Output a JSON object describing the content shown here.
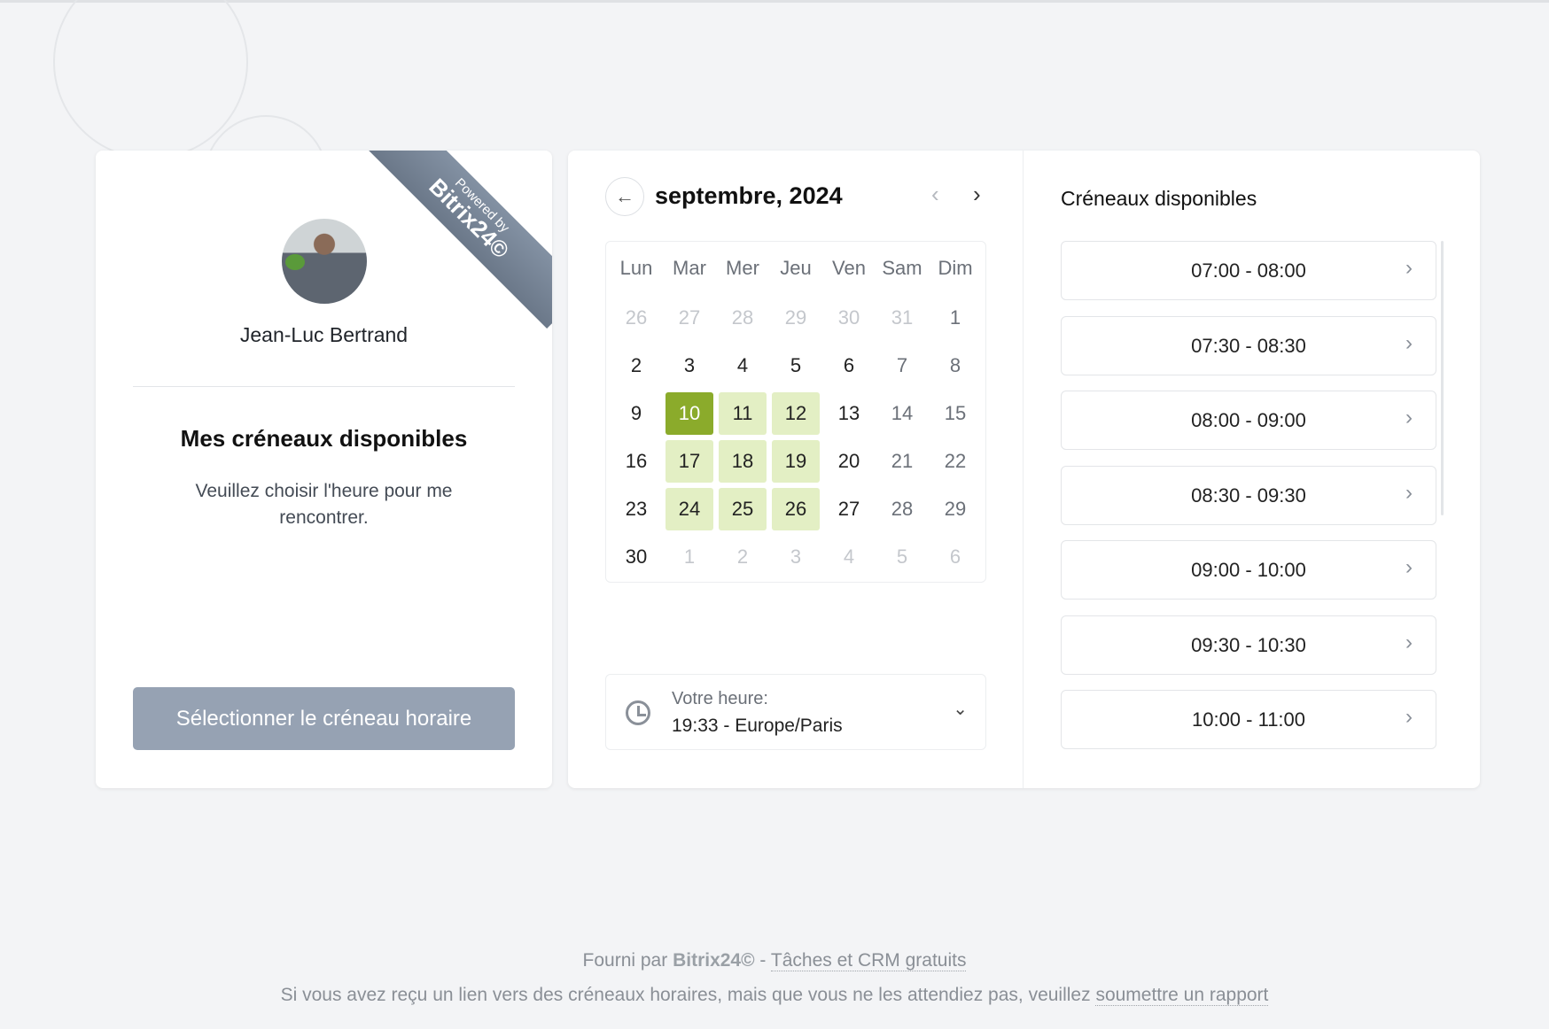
{
  "ribbon": {
    "powered": "Powered by",
    "brand": "Bitrix24©"
  },
  "profile": {
    "name": "Jean-Luc Bertrand",
    "heading": "Mes créneaux disponibles",
    "description": "Veuillez choisir l'heure pour me rencontrer.",
    "select_button": "Sélectionner le créneau horaire"
  },
  "calendar": {
    "title": "septembre, 2024",
    "weekdays": [
      "Lun",
      "Mar",
      "Mer",
      "Jeu",
      "Ven",
      "Sam",
      "Dim"
    ],
    "weeks": [
      [
        "26",
        "27",
        "28",
        "29",
        "30",
        "31",
        "1"
      ],
      [
        "2",
        "3",
        "4",
        "5",
        "6",
        "7",
        "8"
      ],
      [
        "9",
        "10",
        "11",
        "12",
        "13",
        "14",
        "15"
      ],
      [
        "16",
        "17",
        "18",
        "19",
        "20",
        "21",
        "22"
      ],
      [
        "23",
        "24",
        "25",
        "26",
        "27",
        "28",
        "29"
      ],
      [
        "30",
        "1",
        "2",
        "3",
        "4",
        "5",
        "6"
      ]
    ],
    "selected": "10",
    "available": [
      "11",
      "12",
      "17",
      "18",
      "19",
      "24",
      "25",
      "26"
    ],
    "accent": "#8bab2b",
    "available_color": "#e3efc4"
  },
  "timezone": {
    "label": "Votre heure:",
    "value": "19:33 - Europe/Paris"
  },
  "slots": {
    "title": "Créneaux disponibles",
    "items": [
      "07:00 - 08:00",
      "07:30 - 08:30",
      "08:00 - 09:00",
      "08:30 - 09:30",
      "09:00 - 10:00",
      "09:30 - 10:30",
      "10:00 - 11:00"
    ]
  },
  "footer": {
    "prefix": "Fourni par",
    "brand": "Bitrix24©",
    "sep": " - ",
    "link1": "Tâches et CRM gratuits",
    "line2": "Si vous avez reçu un lien vers des créneaux horaires, mais que vous ne les attendiez pas, veuillez ",
    "link2": "soumettre un rapport"
  }
}
